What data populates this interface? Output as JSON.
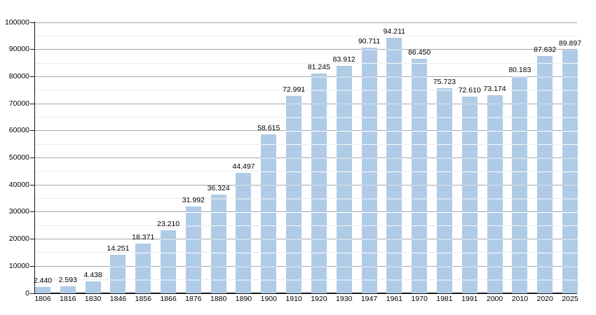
{
  "chart_data": {
    "type": "bar",
    "title": "",
    "xlabel": "",
    "ylabel": "",
    "categories": [
      "1806",
      "1816",
      "1830",
      "1846",
      "1856",
      "1866",
      "1876",
      "1880",
      "1890",
      "1900",
      "1910",
      "1920",
      "1930",
      "1947",
      "1961",
      "1970",
      "1981",
      "1991",
      "2000",
      "2010",
      "2020",
      "2025"
    ],
    "values": [
      2440,
      2593,
      4438,
      14251,
      18371,
      23210,
      31992,
      36324,
      44497,
      58615,
      72991,
      81245,
      83912,
      90711,
      94211,
      86450,
      75723,
      72610,
      73174,
      80183,
      87632,
      89897
    ],
    "value_labels": [
      "2.440",
      "2.593",
      "4.438",
      "14.251",
      "18.371",
      "23.210",
      "31.992",
      "36.324",
      "44.497",
      "58.615",
      "72.991",
      "81.245",
      "83.912",
      "90.711",
      "94.211",
      "86.450",
      "75.723",
      "72.610",
      "73.174",
      "80.183",
      "87.632",
      "89.897"
    ],
    "ylim": [
      0,
      100000
    ],
    "y_major_step": 10000,
    "y_minor_step": 5000,
    "y_tick_labels": [
      "0",
      "10000",
      "20000",
      "30000",
      "40000",
      "50000",
      "60000",
      "70000",
      "80000",
      "90000",
      "100000"
    ],
    "grid": {
      "major": true,
      "minor": true
    },
    "legend_position": "none",
    "colors": {
      "bar_fill": "#afcbe6",
      "bar_gridline_overlay": "rgba(255,255,255,0.65)",
      "grid_major": "#a8a8a8",
      "grid_minor": "#ececec",
      "axis": "#1a1a1a",
      "text": "#000000",
      "background": "#ffffff"
    }
  }
}
